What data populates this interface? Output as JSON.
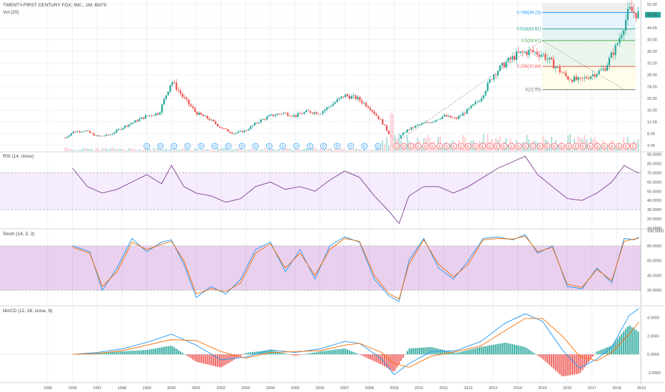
{
  "main_pane": {
    "title": "TWENTY-FIRST CENTURY FOX, INC., 1M, BATS",
    "volume_label": "Vol (20)",
    "price_badge": "48.45",
    "colors": {
      "up": "#26a69a",
      "down": "#ef5350"
    }
  },
  "rsi_pane": {
    "label": "RSI (14, close)"
  },
  "stoch_pane": {
    "label": "Stoch (14, 3, 3)"
  },
  "macd_pane": {
    "label": "MACD (12, 26, close, 9)"
  },
  "fibonacci": [
    {
      "label": "0.786(49.23)",
      "price": 49.23,
      "color": "#2196f3"
    },
    {
      "label": "0.618(43.61)",
      "price": 43.61,
      "color": "#26a69a"
    },
    {
      "label": "0.5(39.67)",
      "price": 39.67,
      "color": "#4caf50"
    },
    {
      "label": "0.236(30.84)",
      "price": 30.84,
      "color": "#ef5350"
    },
    {
      "label": "0(22.95)",
      "price": 22.95,
      "color": "#777777"
    }
  ],
  "dividend_markers": {
    "d_count": 18,
    "e_count": 34
  },
  "chart_data": [
    {
      "type": "candlestick",
      "title": "TWENTY-FIRST CENTURY FOX, INC., 1M, BATS",
      "x_ticks": [
        "1995",
        "1996",
        "1997",
        "1998",
        "1999",
        "2000",
        "2001",
        "2002",
        "2003",
        "2004",
        "2005",
        "2006",
        "2007",
        "2008",
        "2009",
        "2010",
        "2011",
        "2012",
        "2013",
        "2014",
        "2015",
        "2016",
        "2017",
        "2018",
        "2019"
      ],
      "y_ticks": [
        "4.00",
        "8.00",
        "12.00",
        "16.00",
        "20.00",
        "24.00",
        "28.00",
        "32.00",
        "36.00",
        "40.00",
        "44.00",
        "48.00",
        "52.00"
      ],
      "ylim": [
        2,
        53
      ],
      "points": [
        [
          "1995.7",
          6.5
        ],
        [
          "1996.0",
          8.5
        ],
        [
          "1996.5",
          9.0
        ],
        [
          "1997.0",
          7.0
        ],
        [
          "1997.5",
          7.5
        ],
        [
          "1998.0",
          10.0
        ],
        [
          "1998.5",
          12.0
        ],
        [
          "1999.0",
          14.0
        ],
        [
          "1999.5",
          15.0
        ],
        [
          "2000.0",
          26.0
        ],
        [
          "2000.5",
          20.0
        ],
        [
          "2001.0",
          15.0
        ],
        [
          "2001.5",
          13.0
        ],
        [
          "2002.0",
          10.0
        ],
        [
          "2002.5",
          8.0
        ],
        [
          "2003.0",
          9.0
        ],
        [
          "2003.5",
          12.0
        ],
        [
          "2004.0",
          14.0
        ],
        [
          "2004.5",
          15.0
        ],
        [
          "2005.0",
          14.0
        ],
        [
          "2005.5",
          15.5
        ],
        [
          "2006.0",
          15.0
        ],
        [
          "2006.5",
          18.0
        ],
        [
          "2007.0",
          21.0
        ],
        [
          "2007.5",
          20.0
        ],
        [
          "2008.0",
          17.0
        ],
        [
          "2008.5",
          12.0
        ],
        [
          "2009.0",
          5.0
        ],
        [
          "2009.5",
          9.0
        ],
        [
          "2010.0",
          11.0
        ],
        [
          "2010.5",
          12.0
        ],
        [
          "2011.0",
          14.0
        ],
        [
          "2011.5",
          13.0
        ],
        [
          "2012.0",
          16.0
        ],
        [
          "2012.5",
          20.0
        ],
        [
          "2013.0",
          28.0
        ],
        [
          "2013.5",
          32.0
        ],
        [
          "2014.0",
          35.0
        ],
        [
          "2014.5",
          36.0
        ],
        [
          "2015.0",
          35.0
        ],
        [
          "2015.5",
          31.0
        ],
        [
          "2016.0",
          27.0
        ],
        [
          "2016.5",
          26.0
        ],
        [
          "2017.0",
          28.0
        ],
        [
          "2017.5",
          30.0
        ],
        [
          "2018.0",
          38.0
        ],
        [
          "2018.5",
          50.0
        ],
        [
          "2018.9",
          48.45
        ]
      ]
    },
    {
      "type": "line",
      "title": "RSI (14, close)",
      "y_ticks": [
        "10.0000",
        "20.0000",
        "30.0000",
        "40.0000",
        "50.0000",
        "60.0000",
        "70.0000",
        "80.0000",
        "90.0000"
      ],
      "ylim": [
        10,
        92
      ],
      "bands": [
        30,
        70
      ],
      "series": [
        {
          "values": [
            [
              1996.0,
              75
            ],
            [
              1996.6,
              55
            ],
            [
              1997.2,
              48
            ],
            [
              1997.8,
              52
            ],
            [
              1998.4,
              60
            ],
            [
              1999.0,
              68
            ],
            [
              1999.6,
              58
            ],
            [
              2000.0,
              78
            ],
            [
              2000.5,
              55
            ],
            [
              2001.0,
              48
            ],
            [
              2001.6,
              45
            ],
            [
              2002.2,
              38
            ],
            [
              2002.8,
              42
            ],
            [
              2003.4,
              55
            ],
            [
              2004.0,
              60
            ],
            [
              2004.6,
              52
            ],
            [
              2005.2,
              55
            ],
            [
              2005.8,
              50
            ],
            [
              2006.4,
              62
            ],
            [
              2007.0,
              72
            ],
            [
              2007.6,
              65
            ],
            [
              2008.2,
              45
            ],
            [
              2008.8,
              28
            ],
            [
              2009.2,
              15
            ],
            [
              2009.6,
              45
            ],
            [
              2010.2,
              55
            ],
            [
              2010.8,
              55
            ],
            [
              2011.4,
              48
            ],
            [
              2012.0,
              55
            ],
            [
              2012.6,
              65
            ],
            [
              2013.2,
              75
            ],
            [
              2013.8,
              82
            ],
            [
              2014.3,
              88
            ],
            [
              2014.8,
              68
            ],
            [
              2015.4,
              55
            ],
            [
              2016.0,
              42
            ],
            [
              2016.6,
              40
            ],
            [
              2017.2,
              48
            ],
            [
              2017.8,
              60
            ],
            [
              2018.3,
              78
            ],
            [
              2018.7,
              72
            ],
            [
              2018.9,
              70
            ]
          ]
        }
      ]
    },
    {
      "type": "line",
      "title": "Stoch (14, 3, 3)",
      "y_ticks": [
        "20.0000",
        "40.0000",
        "60.0000",
        "80.0000",
        "100.0000"
      ],
      "ylim": [
        0,
        102
      ],
      "bands": [
        20,
        80
      ],
      "series": [
        {
          "values": [
            [
              1996.0,
              80
            ],
            [
              1996.7,
              72
            ],
            [
              1997.2,
              20
            ],
            [
              1997.8,
              50
            ],
            [
              1998.4,
              90
            ],
            [
              1999.0,
              72
            ],
            [
              1999.6,
              85
            ],
            [
              2000.0,
              88
            ],
            [
              2000.5,
              55
            ],
            [
              2001.0,
              10
            ],
            [
              2001.6,
              25
            ],
            [
              2002.2,
              15
            ],
            [
              2002.8,
              35
            ],
            [
              2003.4,
              75
            ],
            [
              2004.0,
              85
            ],
            [
              2004.6,
              45
            ],
            [
              2005.2,
              75
            ],
            [
              2005.8,
              35
            ],
            [
              2006.4,
              80
            ],
            [
              2007.0,
              92
            ],
            [
              2007.6,
              85
            ],
            [
              2008.2,
              35
            ],
            [
              2008.8,
              12
            ],
            [
              2009.2,
              5
            ],
            [
              2009.6,
              60
            ],
            [
              2010.2,
              90
            ],
            [
              2010.8,
              50
            ],
            [
              2011.4,
              35
            ],
            [
              2012.0,
              60
            ],
            [
              2012.6,
              90
            ],
            [
              2013.2,
              92
            ],
            [
              2013.8,
              88
            ],
            [
              2014.3,
              95
            ],
            [
              2014.8,
              70
            ],
            [
              2015.4,
              80
            ],
            [
              2016.0,
              25
            ],
            [
              2016.6,
              22
            ],
            [
              2017.2,
              50
            ],
            [
              2017.8,
              30
            ],
            [
              2018.3,
              90
            ],
            [
              2018.7,
              88
            ],
            [
              2018.9,
              92
            ]
          ]
        },
        {
          "values": [
            [
              1996.0,
              78
            ],
            [
              1996.7,
              70
            ],
            [
              1997.2,
              25
            ],
            [
              1997.8,
              45
            ],
            [
              1998.4,
              85
            ],
            [
              1999.0,
              75
            ],
            [
              1999.6,
              82
            ],
            [
              2000.0,
              86
            ],
            [
              2000.5,
              60
            ],
            [
              2001.0,
              15
            ],
            [
              2001.6,
              22
            ],
            [
              2002.2,
              18
            ],
            [
              2002.8,
              30
            ],
            [
              2003.4,
              70
            ],
            [
              2004.0,
              83
            ],
            [
              2004.6,
              50
            ],
            [
              2005.2,
              70
            ],
            [
              2005.8,
              40
            ],
            [
              2006.4,
              75
            ],
            [
              2007.0,
              90
            ],
            [
              2007.6,
              86
            ],
            [
              2008.2,
              40
            ],
            [
              2008.8,
              15
            ],
            [
              2009.2,
              8
            ],
            [
              2009.6,
              55
            ],
            [
              2010.2,
              88
            ],
            [
              2010.8,
              55
            ],
            [
              2011.4,
              38
            ],
            [
              2012.0,
              55
            ],
            [
              2012.6,
              88
            ],
            [
              2013.2,
              90
            ],
            [
              2013.8,
              89
            ],
            [
              2014.3,
              93
            ],
            [
              2014.8,
              72
            ],
            [
              2015.4,
              78
            ],
            [
              2016.0,
              28
            ],
            [
              2016.6,
              24
            ],
            [
              2017.2,
              48
            ],
            [
              2017.8,
              33
            ],
            [
              2018.3,
              86
            ],
            [
              2018.7,
              89
            ],
            [
              2018.9,
              90
            ]
          ]
        }
      ]
    },
    {
      "type": "line",
      "title": "MACD (12, 26, close, 9)",
      "y_ticks": [
        "-2.0000",
        "0.0000",
        "2.0000",
        "4.0000"
      ],
      "ylim": [
        -3,
        5.2
      ],
      "series": [
        {
          "values": [
            [
              1996.0,
              0.0
            ],
            [
              1997.0,
              0.2
            ],
            [
              1998.0,
              0.6
            ],
            [
              1999.0,
              1.3
            ],
            [
              2000.0,
              2.2
            ],
            [
              2001.0,
              1.0
            ],
            [
              2002.0,
              -0.6
            ],
            [
              2003.0,
              -0.3
            ],
            [
              2004.0,
              0.5
            ],
            [
              2005.0,
              0.2
            ],
            [
              2006.0,
              0.6
            ],
            [
              2007.0,
              1.4
            ],
            [
              2007.6,
              1.2
            ],
            [
              2008.5,
              -0.5
            ],
            [
              2009.0,
              -2.2
            ],
            [
              2009.6,
              -1.0
            ],
            [
              2010.5,
              0.3
            ],
            [
              2011.5,
              0.4
            ],
            [
              2012.5,
              1.4
            ],
            [
              2013.5,
              3.4
            ],
            [
              2014.3,
              4.4
            ],
            [
              2015.0,
              3.6
            ],
            [
              2015.8,
              0.5
            ],
            [
              2016.5,
              -1.5
            ],
            [
              2017.2,
              -0.5
            ],
            [
              2017.8,
              0.8
            ],
            [
              2018.5,
              4.2
            ],
            [
              2018.9,
              5.0
            ]
          ]
        },
        {
          "values": [
            [
              1996.0,
              0.0
            ],
            [
              1997.0,
              0.1
            ],
            [
              1998.0,
              0.4
            ],
            [
              1999.0,
              1.0
            ],
            [
              2000.0,
              1.6
            ],
            [
              2001.0,
              1.5
            ],
            [
              2002.0,
              0.3
            ],
            [
              2003.0,
              -0.4
            ],
            [
              2004.0,
              0.2
            ],
            [
              2005.0,
              0.3
            ],
            [
              2006.0,
              0.4
            ],
            [
              2007.0,
              1.0
            ],
            [
              2007.6,
              1.2
            ],
            [
              2008.5,
              0.2
            ],
            [
              2009.0,
              -1.0
            ],
            [
              2009.6,
              -1.4
            ],
            [
              2010.5,
              -0.2
            ],
            [
              2011.5,
              0.3
            ],
            [
              2012.5,
              0.9
            ],
            [
              2013.5,
              2.6
            ],
            [
              2014.3,
              3.9
            ],
            [
              2015.0,
              3.9
            ],
            [
              2015.8,
              2.0
            ],
            [
              2016.5,
              -0.2
            ],
            [
              2017.2,
              -0.7
            ],
            [
              2017.8,
              0.2
            ],
            [
              2018.5,
              2.2
            ],
            [
              2018.9,
              3.5
            ]
          ]
        }
      ]
    }
  ]
}
